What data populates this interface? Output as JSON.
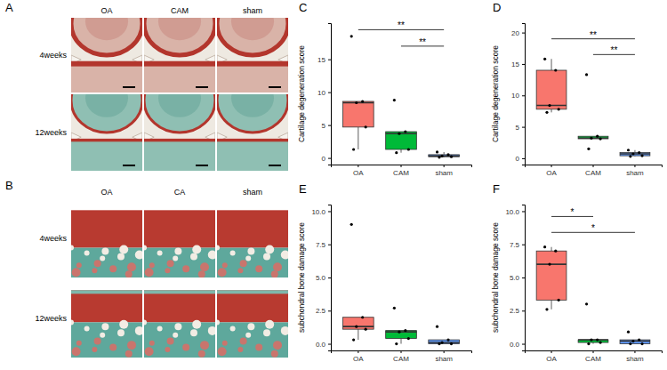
{
  "image_panels": [
    {
      "panel": "A",
      "columns": [
        "OA",
        "CAM",
        "sham"
      ],
      "rows": [
        "4weeks",
        "12weeks"
      ]
    },
    {
      "panel": "B",
      "columns": [
        "OA",
        "CA",
        "sham"
      ],
      "rows": [
        "4weeks",
        "12weeks"
      ]
    }
  ],
  "chart_data": [
    {
      "type": "box",
      "panel": "C",
      "y_label": "Cartilage degeneration score",
      "categories": [
        "OA",
        "CAM",
        "sham"
      ],
      "colors": [
        "#F8766D",
        "#00BA38",
        "#619CFF"
      ],
      "points": [
        [
          18.5,
          8.6,
          8.4,
          4.7,
          1.3
        ],
        [
          8.8,
          4.0,
          3.7,
          1.3,
          0.8
        ],
        [
          0.9,
          0.5,
          0.3,
          0.2,
          0.1
        ]
      ],
      "whisker_low": [
        1.3,
        0.8,
        0.1
      ],
      "q1": [
        4.7,
        1.3,
        0.2
      ],
      "median": [
        8.4,
        3.7,
        0.3
      ],
      "q3": [
        8.6,
        4.0,
        0.5
      ],
      "whisker_high": [
        8.6,
        4.0,
        0.9
      ],
      "significance": [
        {
          "from": "OA",
          "to": "sham",
          "y": 19.5,
          "label": "**"
        },
        {
          "from": "CAM",
          "to": "sham",
          "y": 17.0,
          "label": "**"
        }
      ],
      "ylim": [
        -1,
        20.5
      ],
      "yticks": [
        0,
        5,
        10,
        15
      ],
      "grid": false
    },
    {
      "type": "box",
      "panel": "D",
      "y_label": "Cartilage degeneration score",
      "categories": [
        "OA",
        "CAM",
        "sham"
      ],
      "colors": [
        "#F8766D",
        "#00BA38",
        "#619CFF"
      ],
      "points": [
        [
          15.8,
          14.0,
          8.4,
          7.8,
          7.3
        ],
        [
          13.3,
          3.5,
          3.2,
          3.1,
          1.5
        ],
        [
          1.3,
          0.9,
          0.7,
          0.4,
          0.3
        ]
      ],
      "whisker_low": [
        7.3,
        3.1,
        0.3
      ],
      "q1": [
        7.8,
        3.1,
        0.4
      ],
      "median": [
        8.4,
        3.2,
        0.7
      ],
      "q3": [
        14.0,
        3.5,
        0.9
      ],
      "whisker_high": [
        15.8,
        3.5,
        1.3
      ],
      "significance": [
        {
          "from": "OA",
          "to": "sham",
          "y": 19.0,
          "label": "**"
        },
        {
          "from": "CAM",
          "to": "sham",
          "y": 16.5,
          "label": "**"
        }
      ],
      "ylim": [
        -1,
        21.5
      ],
      "yticks": [
        0,
        5,
        10,
        15,
        20
      ],
      "grid": false
    },
    {
      "type": "box",
      "panel": "E",
      "y_label": "subchondral bone damage score",
      "categories": [
        "OA",
        "CAM",
        "sham"
      ],
      "colors": [
        "#F8766D",
        "#00BA38",
        "#619CFF"
      ],
      "points": [
        [
          9.0,
          2.0,
          1.3,
          1.1,
          0.3
        ],
        [
          2.7,
          1.0,
          0.9,
          0.4,
          0.0
        ],
        [
          1.3,
          0.3,
          0.1,
          0.0,
          0.0
        ]
      ],
      "whisker_low": [
        0.3,
        0.0,
        0.0
      ],
      "q1": [
        1.1,
        0.4,
        0.0
      ],
      "median": [
        1.3,
        0.9,
        0.1
      ],
      "q3": [
        2.0,
        1.0,
        0.3
      ],
      "whisker_high": [
        2.0,
        1.0,
        0.3
      ],
      "ylim": [
        -0.5,
        10.5
      ],
      "yticks": [
        {
          "value": 0,
          "label": "0.0"
        },
        {
          "value": 2.5,
          "label": "2.5"
        },
        {
          "value": 5,
          "label": "5.0"
        },
        {
          "value": 7.5,
          "label": "7.5"
        },
        {
          "value": 10,
          "label": "10.0"
        }
      ],
      "grid": false
    },
    {
      "type": "box",
      "panel": "F",
      "y_label": "subchondral bone damage score",
      "categories": [
        "OA",
        "CAM",
        "sham"
      ],
      "colors": [
        "#F8766D",
        "#00BA38",
        "#619CFF"
      ],
      "points": [
        [
          7.3,
          7.0,
          6.0,
          3.3,
          2.6
        ],
        [
          3.0,
          0.3,
          0.3,
          0.1,
          0.0
        ],
        [
          0.9,
          0.3,
          0.2,
          0.0,
          0.0
        ]
      ],
      "whisker_low": [
        2.6,
        0.0,
        0.0
      ],
      "q1": [
        3.3,
        0.1,
        0.0
      ],
      "median": [
        6.0,
        0.3,
        0.2
      ],
      "q3": [
        7.0,
        0.3,
        0.3
      ],
      "whisker_high": [
        7.3,
        0.3,
        0.3
      ],
      "significance": [
        {
          "from": "OA",
          "to": "CAM",
          "y": 9.6,
          "label": "*"
        },
        {
          "from": "OA",
          "to": "sham",
          "y": 8.4,
          "label": "*"
        }
      ],
      "ylim": [
        -0.5,
        10.5
      ],
      "yticks": [
        {
          "value": 0,
          "label": "0.0"
        },
        {
          "value": 2.5,
          "label": "2.5"
        },
        {
          "value": 5,
          "label": "5.0"
        },
        {
          "value": 7.5,
          "label": "7.5"
        },
        {
          "value": 10,
          "label": "10.0"
        }
      ],
      "grid": false
    }
  ]
}
